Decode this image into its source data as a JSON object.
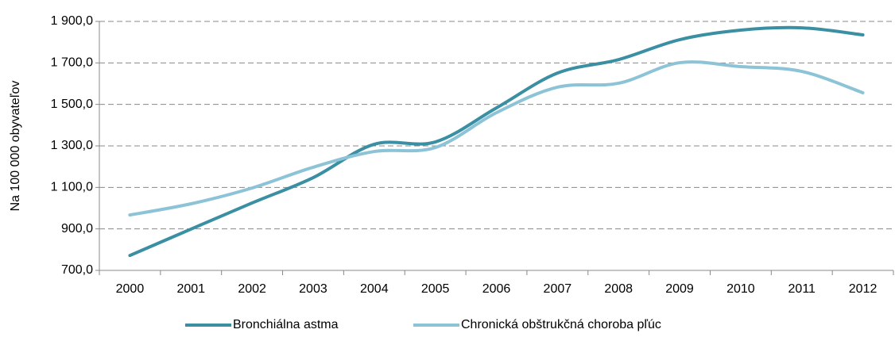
{
  "chart_data": {
    "type": "line",
    "y_label": "Na 100 000 obyvateľov",
    "categories": [
      "2000",
      "2001",
      "2002",
      "2003",
      "2004",
      "2005",
      "2006",
      "2007",
      "2008",
      "2009",
      "2010",
      "2011",
      "2012"
    ],
    "series": [
      {
        "name": "Bronchiálna astma",
        "color": "#3a8fa3",
        "values": [
          772,
          899,
          1025,
          1147,
          1308,
          1319,
          1483,
          1651,
          1716,
          1812,
          1858,
          1869,
          1835
        ]
      },
      {
        "name": "Chronická obštrukčná choroba pľúc",
        "color": "#8cc3d6",
        "values": [
          967,
          1021,
          1097,
          1197,
          1273,
          1292,
          1460,
          1583,
          1602,
          1701,
          1682,
          1659,
          1556
        ]
      }
    ],
    "ylim": [
      700,
      1900
    ],
    "yticks": [
      {
        "value": 700,
        "label": "700,0"
      },
      {
        "value": 900,
        "label": "900,0"
      },
      {
        "value": 1100,
        "label": "1 100,0"
      },
      {
        "value": 1300,
        "label": "1 300,0"
      },
      {
        "value": 1500,
        "label": "1 500,0"
      },
      {
        "value": 1700,
        "label": "1 700,0"
      },
      {
        "value": 1900,
        "label": "1 900,0"
      }
    ],
    "grid": true,
    "legend": "bottom"
  }
}
